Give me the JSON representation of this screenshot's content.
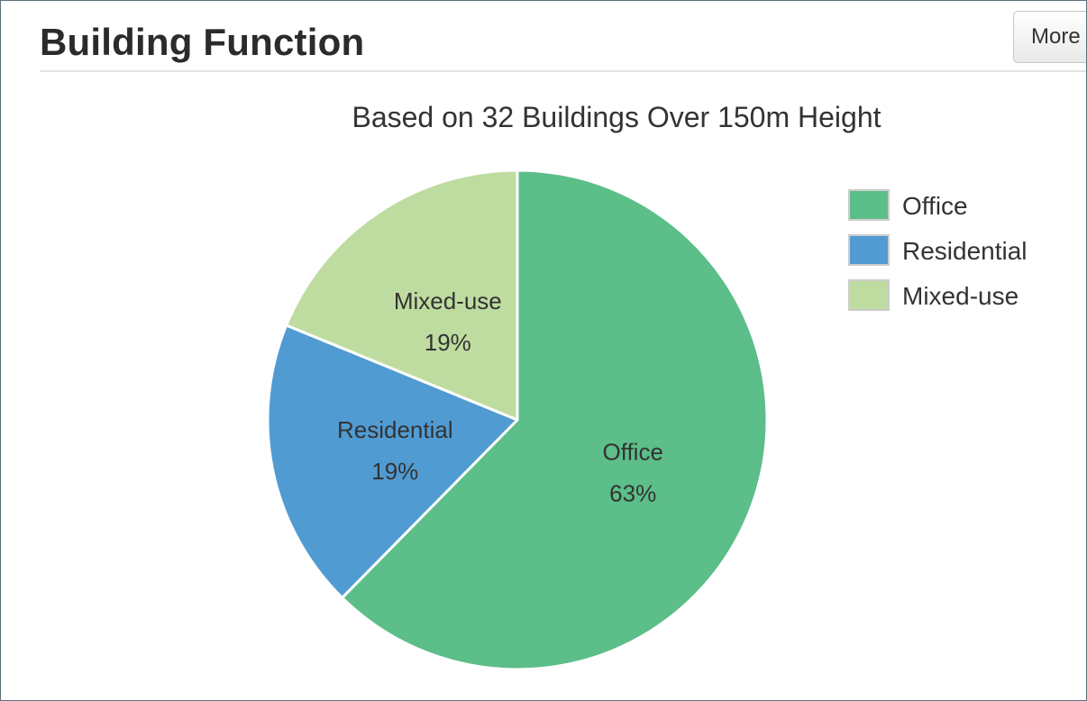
{
  "section": {
    "title": "Building Function",
    "more_label": "More"
  },
  "chart_data": {
    "type": "pie",
    "title": "Based on 32 Buildings Over 150m Height",
    "legend_position": "right",
    "slices": [
      {
        "label": "Office",
        "value": 63,
        "display": "63%",
        "color": "#5cbe88"
      },
      {
        "label": "Residential",
        "value": 19,
        "display": "19%",
        "color": "#519bd3"
      },
      {
        "label": "Mixed-use",
        "value": 19,
        "display": "19%",
        "color": "#bfdca0"
      }
    ]
  }
}
